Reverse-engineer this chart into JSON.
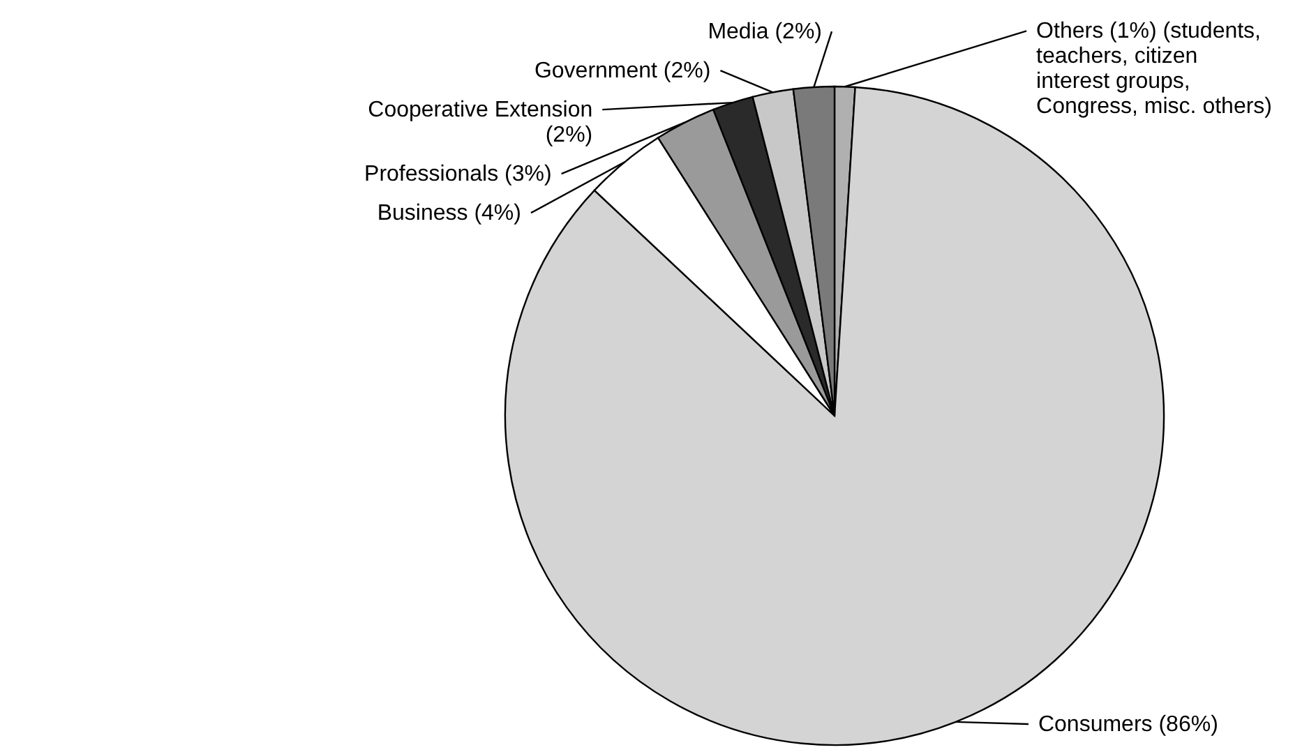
{
  "chart_data": {
    "type": "pie",
    "categories": [
      "Others (1%) (students, teachers, citizen interest groups, Congress, misc. others)",
      "Consumers (86%)",
      "Business (4%)",
      "Professionals (3%)",
      "Cooperative Extension (2%)",
      "Government (2%)",
      "Media (2%)"
    ],
    "values": [
      1,
      86,
      4,
      3,
      2,
      2,
      2
    ],
    "colors": [
      "#b0b0b0",
      "#d4d4d4",
      "#ffffff",
      "#9a9a9a",
      "#2a2a2a",
      "#c8c8c8",
      "#7a7a7a"
    ]
  }
}
